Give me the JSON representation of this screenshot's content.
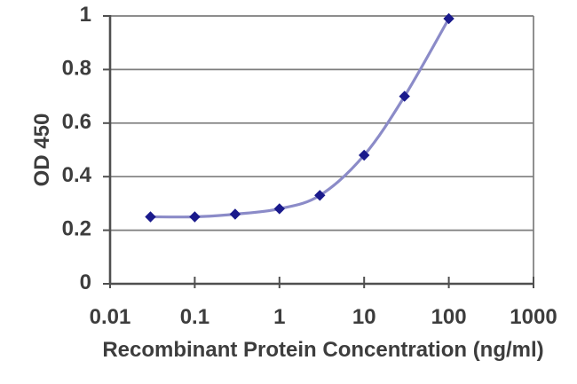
{
  "chart_data": {
    "type": "line",
    "title": "",
    "xlabel": "Recombinant Protein Concentration (ng/ml)",
    "ylabel": "OD 450",
    "x_scale": "log",
    "xlim": [
      0.01,
      1000
    ],
    "ylim": [
      0,
      1
    ],
    "x_ticks": {
      "values": [
        0.01,
        0.1,
        1,
        10,
        100,
        1000
      ],
      "labels": [
        "0.01",
        "0.1",
        "1",
        "10",
        "100",
        "1000"
      ]
    },
    "y_ticks": {
      "values": [
        0,
        0.2,
        0.4,
        0.6,
        0.8,
        1
      ],
      "labels": [
        "0",
        "0.2",
        "0.4",
        "0.6",
        "0.8",
        "1"
      ]
    },
    "grid": "horizontal-only",
    "legend": "none",
    "series": [
      {
        "name": "OD 450",
        "marker": "diamond",
        "line_style": "smooth",
        "x": [
          0.03,
          0.1,
          0.3,
          1,
          3,
          10,
          30,
          100
        ],
        "y": [
          0.25,
          0.25,
          0.26,
          0.28,
          0.33,
          0.48,
          0.7,
          0.99
        ]
      }
    ],
    "colors": {
      "line": "#8b8bc8",
      "marker": "#1a1a8c",
      "grid": "#7d7d7d",
      "border": "#7d7d7d",
      "axis": "#4f4f4f",
      "text": "#3d3d3d",
      "background": "#ffffff"
    }
  }
}
